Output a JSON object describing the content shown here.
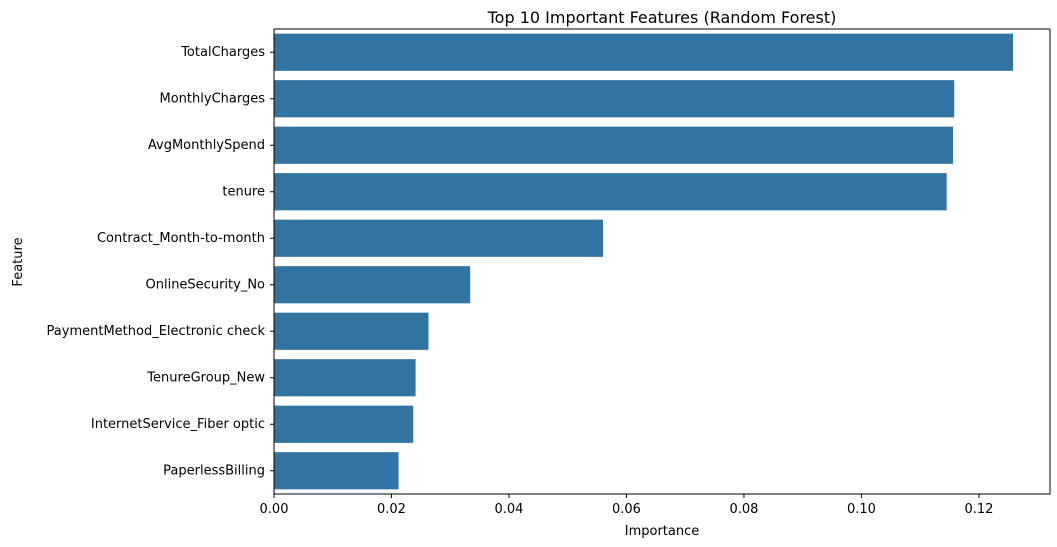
{
  "chart_data": {
    "type": "bar",
    "orientation": "horizontal",
    "title": "Top 10 Important Features (Random Forest)",
    "xlabel": "Importance",
    "ylabel": "Feature",
    "categories": [
      "TotalCharges",
      "MonthlyCharges",
      "AvgMonthlySpend",
      "tenure",
      "Contract_Month-to-month",
      "OnlineSecurity_No",
      "PaymentMethod_Electronic check",
      "TenureGroup_New",
      "InternetService_Fiber optic",
      "PaperlessBilling"
    ],
    "values": [
      0.1258,
      0.1158,
      0.1156,
      0.1145,
      0.056,
      0.0334,
      0.0263,
      0.0241,
      0.0237,
      0.0212
    ],
    "xlim": [
      0,
      0.1321
    ],
    "x_ticks": [
      0.0,
      0.02,
      0.04,
      0.06,
      0.08,
      0.1,
      0.12
    ],
    "x_tick_labels": [
      "0.00",
      "0.02",
      "0.04",
      "0.06",
      "0.08",
      "0.10",
      "0.12"
    ],
    "grid": false,
    "bar_color": "#3274a1"
  }
}
